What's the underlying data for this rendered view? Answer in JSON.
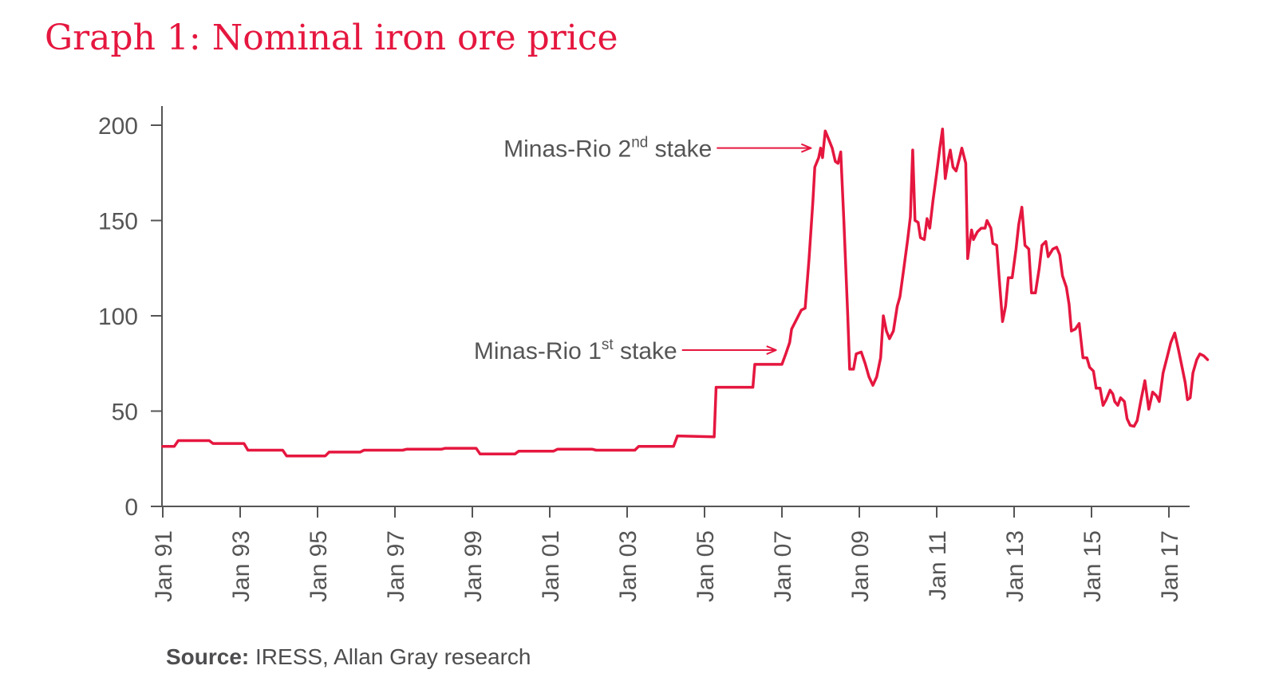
{
  "title": "Graph 1: Nominal iron ore price",
  "source": {
    "label": "Source:",
    "text": " IRESS, Allan Gray research"
  },
  "colors": {
    "accent": "#e5173f",
    "axis": "#555555",
    "text": "#555555"
  },
  "chart_data": {
    "type": "line",
    "title": "Graph 1: Nominal iron ore price",
    "xlabel": "",
    "ylabel": "",
    "ylim": [
      0,
      200
    ],
    "yticks": [
      0,
      50,
      100,
      150,
      200
    ],
    "xlim": [
      1991.0,
      2018.2
    ],
    "xticks": [
      {
        "x": 1991,
        "label": "Jan 91"
      },
      {
        "x": 1993,
        "label": "Jan 93"
      },
      {
        "x": 1995,
        "label": "Jan 95"
      },
      {
        "x": 1997,
        "label": "Jan 97"
      },
      {
        "x": 1999,
        "label": "Jan 99"
      },
      {
        "x": 2001,
        "label": "Jan 01"
      },
      {
        "x": 2003,
        "label": "Jan 03"
      },
      {
        "x": 2005,
        "label": "Jan 05"
      },
      {
        "x": 2007,
        "label": "Jan 07"
      },
      {
        "x": 2009,
        "label": "Jan 09"
      },
      {
        "x": 2011,
        "label": "Jan 11"
      },
      {
        "x": 2013,
        "label": "Jan 13"
      },
      {
        "x": 2015,
        "label": "Jan 15"
      },
      {
        "x": 2017,
        "label": "Jan 17"
      }
    ],
    "grid": false,
    "series": [
      {
        "color": "#e5173f",
        "points": [
          [
            1991.0,
            31.5
          ],
          [
            1991.3,
            31.5
          ],
          [
            1991.4,
            34.5
          ],
          [
            1992.2,
            34.5
          ],
          [
            1992.3,
            33.0
          ],
          [
            1993.1,
            33.0
          ],
          [
            1993.2,
            29.5
          ],
          [
            1994.1,
            29.5
          ],
          [
            1994.2,
            26.5
          ],
          [
            1995.2,
            26.5
          ],
          [
            1995.3,
            28.5
          ],
          [
            1996.1,
            28.5
          ],
          [
            1996.2,
            29.5
          ],
          [
            1997.2,
            29.5
          ],
          [
            1997.3,
            30.0
          ],
          [
            1998.2,
            30.0
          ],
          [
            1998.3,
            30.5
          ],
          [
            1999.1,
            30.5
          ],
          [
            1999.2,
            27.5
          ],
          [
            2000.1,
            27.5
          ],
          [
            2000.2,
            29.0
          ],
          [
            2001.1,
            29.0
          ],
          [
            2001.2,
            30.0
          ],
          [
            2002.1,
            30.0
          ],
          [
            2002.2,
            29.5
          ],
          [
            2003.2,
            29.5
          ],
          [
            2003.3,
            31.5
          ],
          [
            2004.2,
            31.5
          ],
          [
            2004.3,
            37.0
          ],
          [
            2005.25,
            36.5
          ],
          [
            2005.3,
            62.5
          ],
          [
            2006.25,
            62.5
          ],
          [
            2006.3,
            74.5
          ],
          [
            2007.0,
            74.5
          ],
          [
            2007.1,
            80.0
          ],
          [
            2007.2,
            86.0
          ],
          [
            2007.25,
            93.0
          ],
          [
            2007.4,
            99.0
          ],
          [
            2007.5,
            103.0
          ],
          [
            2007.6,
            104.0
          ],
          [
            2007.7,
            130.0
          ],
          [
            2007.8,
            160.0
          ],
          [
            2007.85,
            178.0
          ],
          [
            2007.95,
            183.0
          ],
          [
            2008.0,
            188.0
          ],
          [
            2008.05,
            183.0
          ],
          [
            2008.12,
            197.0
          ],
          [
            2008.2,
            193.0
          ],
          [
            2008.3,
            188.0
          ],
          [
            2008.38,
            181.0
          ],
          [
            2008.45,
            180.0
          ],
          [
            2008.52,
            186.0
          ],
          [
            2008.6,
            150.0
          ],
          [
            2008.7,
            100.0
          ],
          [
            2008.75,
            72.0
          ],
          [
            2008.85,
            72.0
          ],
          [
            2008.92,
            80.0
          ],
          [
            2009.05,
            81.0
          ],
          [
            2009.15,
            75.0
          ],
          [
            2009.25,
            68.0
          ],
          [
            2009.35,
            63.5
          ],
          [
            2009.45,
            68.0
          ],
          [
            2009.55,
            78.0
          ],
          [
            2009.62,
            100.0
          ],
          [
            2009.7,
            92.0
          ],
          [
            2009.78,
            88.0
          ],
          [
            2009.88,
            92.0
          ],
          [
            2009.98,
            105.0
          ],
          [
            2010.05,
            110.0
          ],
          [
            2010.15,
            125.0
          ],
          [
            2010.25,
            140.0
          ],
          [
            2010.32,
            152.0
          ],
          [
            2010.38,
            187.0
          ],
          [
            2010.44,
            150.0
          ],
          [
            2010.52,
            149.0
          ],
          [
            2010.58,
            141.0
          ],
          [
            2010.68,
            140.0
          ],
          [
            2010.75,
            151.0
          ],
          [
            2010.82,
            146.0
          ],
          [
            2010.9,
            160.0
          ],
          [
            2011.0,
            175.0
          ],
          [
            2011.08,
            188.0
          ],
          [
            2011.15,
            198.0
          ],
          [
            2011.22,
            172.0
          ],
          [
            2011.3,
            182.0
          ],
          [
            2011.35,
            187.0
          ],
          [
            2011.42,
            178.0
          ],
          [
            2011.5,
            176.0
          ],
          [
            2011.58,
            182.0
          ],
          [
            2011.65,
            188.0
          ],
          [
            2011.75,
            180.0
          ],
          [
            2011.8,
            130.0
          ],
          [
            2011.85,
            138.0
          ],
          [
            2011.9,
            145.0
          ],
          [
            2011.95,
            140.0
          ],
          [
            2012.05,
            144.0
          ],
          [
            2012.15,
            146.0
          ],
          [
            2012.25,
            146.0
          ],
          [
            2012.3,
            150.0
          ],
          [
            2012.4,
            146.0
          ],
          [
            2012.45,
            138.0
          ],
          [
            2012.55,
            137.0
          ],
          [
            2012.62,
            118.0
          ],
          [
            2012.7,
            97.0
          ],
          [
            2012.78,
            105.0
          ],
          [
            2012.85,
            120.0
          ],
          [
            2012.95,
            120.0
          ],
          [
            2013.05,
            135.0
          ],
          [
            2013.12,
            148.0
          ],
          [
            2013.2,
            157.0
          ],
          [
            2013.28,
            137.0
          ],
          [
            2013.38,
            135.0
          ],
          [
            2013.45,
            112.0
          ],
          [
            2013.55,
            112.0
          ],
          [
            2013.65,
            125.0
          ],
          [
            2013.72,
            137.0
          ],
          [
            2013.82,
            139.0
          ],
          [
            2013.88,
            131.0
          ],
          [
            2014.0,
            135.0
          ],
          [
            2014.1,
            136.0
          ],
          [
            2014.18,
            132.0
          ],
          [
            2014.25,
            121.0
          ],
          [
            2014.35,
            115.0
          ],
          [
            2014.42,
            106.0
          ],
          [
            2014.48,
            92.0
          ],
          [
            2014.58,
            93.0
          ],
          [
            2014.68,
            96.0
          ],
          [
            2014.78,
            78.0
          ],
          [
            2014.88,
            78.0
          ],
          [
            2014.95,
            73.0
          ],
          [
            2015.05,
            71.0
          ],
          [
            2015.12,
            62.0
          ],
          [
            2015.22,
            62.0
          ],
          [
            2015.3,
            53.0
          ],
          [
            2015.38,
            56.0
          ],
          [
            2015.48,
            61.0
          ],
          [
            2015.55,
            59.0
          ],
          [
            2015.6,
            55.0
          ],
          [
            2015.68,
            53.0
          ],
          [
            2015.75,
            57.0
          ],
          [
            2015.85,
            55.0
          ],
          [
            2015.92,
            46.0
          ],
          [
            2016.0,
            42.5
          ],
          [
            2016.1,
            42.0
          ],
          [
            2016.18,
            45.0
          ],
          [
            2016.28,
            56.0
          ],
          [
            2016.38,
            66.0
          ],
          [
            2016.48,
            51.0
          ],
          [
            2016.58,
            60.0
          ],
          [
            2016.68,
            58.0
          ],
          [
            2016.75,
            55.0
          ],
          [
            2016.85,
            70.0
          ],
          [
            2016.95,
            78.0
          ],
          [
            2017.05,
            86.0
          ],
          [
            2017.15,
            91.0
          ],
          [
            2017.25,
            82.0
          ],
          [
            2017.35,
            72.0
          ],
          [
            2017.42,
            65.0
          ],
          [
            2017.48,
            56.0
          ],
          [
            2017.55,
            57.0
          ],
          [
            2017.62,
            70.0
          ],
          [
            2017.72,
            77.0
          ],
          [
            2017.8,
            80.0
          ],
          [
            2017.9,
            79.0
          ],
          [
            2018.0,
            77.0
          ]
        ]
      }
    ],
    "annotations": [
      {
        "text": "Minas-Rio 1",
        "sup": "st",
        "suffix": " stake",
        "point": [
          2006.85,
          82
        ]
      },
      {
        "text": "Minas-Rio 2",
        "sup": "nd",
        "suffix": " stake",
        "point": [
          2007.75,
          188
        ]
      }
    ]
  }
}
